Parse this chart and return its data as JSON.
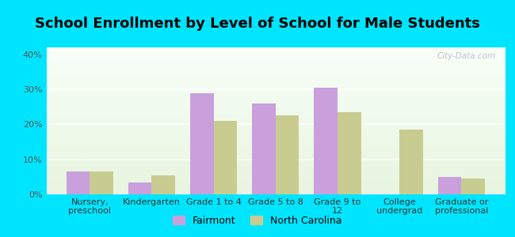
{
  "title": "School Enrollment by Level of School for Male Students",
  "categories": [
    "Nursery,\npreschool",
    "Kindergarten",
    "Grade 1 to 4",
    "Grade 5 to 8",
    "Grade 9 to\n12",
    "College\nundergrad",
    "Graduate or\nprofessional"
  ],
  "fairmont_values": [
    6.5,
    3.5,
    29.0,
    26.0,
    30.5,
    0.0,
    5.0
  ],
  "nc_values": [
    6.5,
    5.5,
    21.0,
    22.5,
    23.5,
    18.5,
    4.5
  ],
  "fairmont_color": "#c9a0dc",
  "nc_color": "#c8cc90",
  "background_outer": "#00e5ff",
  "ylim": [
    0,
    42
  ],
  "yticks": [
    0,
    10,
    20,
    30,
    40
  ],
  "ytick_labels": [
    "0%",
    "10%",
    "20%",
    "30%",
    "40%"
  ],
  "bar_width": 0.38,
  "legend_labels": [
    "Fairmont",
    "North Carolina"
  ],
  "title_fontsize": 13,
  "tick_fontsize": 8,
  "legend_fontsize": 9,
  "watermark_text": "City-Data.com"
}
